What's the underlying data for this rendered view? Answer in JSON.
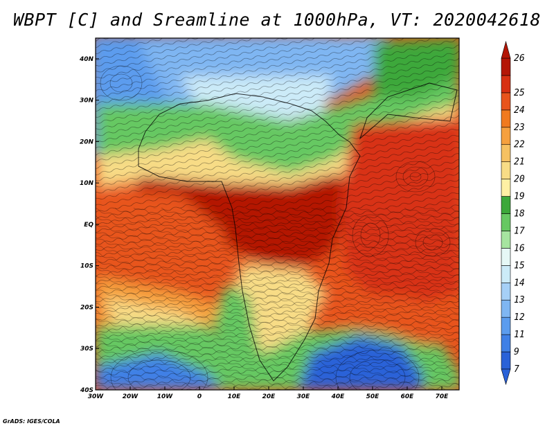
{
  "title": "WBPT [C] and Sreamline at 1000hPa, VT: 2020042618",
  "credit": "GrADS: IGES/COLA",
  "map": {
    "lon_range": [
      -30,
      75
    ],
    "lat_range": [
      -40,
      45
    ],
    "lon_ticks": [
      {
        "value": -30,
        "label": "30W"
      },
      {
        "value": -20,
        "label": "20W"
      },
      {
        "value": -10,
        "label": "10W"
      },
      {
        "value": 0,
        "label": "0"
      },
      {
        "value": 10,
        "label": "10E"
      },
      {
        "value": 20,
        "label": "20E"
      },
      {
        "value": 30,
        "label": "30E"
      },
      {
        "value": 40,
        "label": "40E"
      },
      {
        "value": 50,
        "label": "50E"
      },
      {
        "value": 60,
        "label": "60E"
      },
      {
        "value": 70,
        "label": "70E"
      }
    ],
    "lat_ticks": [
      {
        "value": 40,
        "label": "40N"
      },
      {
        "value": 30,
        "label": "30N"
      },
      {
        "value": 20,
        "label": "20N"
      },
      {
        "value": 10,
        "label": "10N"
      },
      {
        "value": 0,
        "label": "EQ"
      },
      {
        "value": -10,
        "label": "10S"
      },
      {
        "value": -20,
        "label": "20S"
      },
      {
        "value": -30,
        "label": "30S"
      },
      {
        "value": -40,
        "label": "40S"
      }
    ]
  },
  "colorbar": {
    "labels": [
      "7",
      "9",
      "11",
      "12",
      "13",
      "14",
      "15",
      "16",
      "17",
      "18",
      "19",
      "20",
      "21",
      "22",
      "23",
      "24",
      "25",
      "26"
    ],
    "colors": [
      "#2a62d8",
      "#3f80e6",
      "#5b9cee",
      "#7fb6f2",
      "#a6d0f7",
      "#ccebf8",
      "#e6f8f6",
      "#a6e4a0",
      "#66c862",
      "#3ca83a",
      "#fff0a4",
      "#f8dc86",
      "#f6c162",
      "#f6a03e",
      "#f07a1e",
      "#e8541c",
      "#d83012",
      "#b41606"
    ]
  },
  "regions": [
    {
      "name": "north-atlantic-cool",
      "color": "#5b9cee"
    },
    {
      "name": "north-africa-blue",
      "color": "#7fb6f2"
    },
    {
      "name": "sahara-green",
      "color": "#66c862"
    },
    {
      "name": "sahel-yellow",
      "color": "#f8dc86"
    },
    {
      "name": "central-africa-hot",
      "color": "#b41606"
    },
    {
      "name": "atlantic-warm",
      "color": "#e8541c"
    },
    {
      "name": "southern-africa-mix",
      "color": "#f8dc86"
    },
    {
      "name": "indian-ocean-warm",
      "color": "#d83012"
    },
    {
      "name": "southern-ocean-cool",
      "color": "#2a62d8"
    }
  ]
}
